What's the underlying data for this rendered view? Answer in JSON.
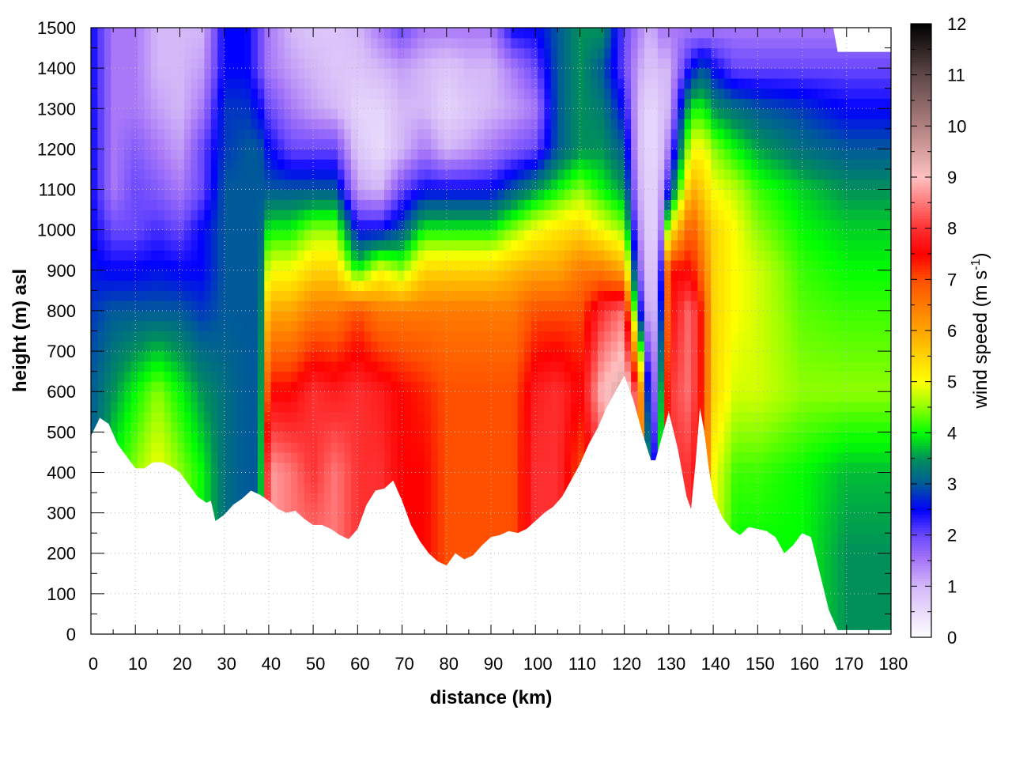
{
  "chart_data": {
    "type": "heatmap",
    "title": "",
    "xlabel": "distance (km)",
    "ylabel": "height (m) asl",
    "colorbar_label": {
      "text": "wind speed (m s",
      "superscript": "-1",
      "suffix": ")"
    },
    "xlim": [
      0,
      180
    ],
    "ylim": [
      0,
      1500
    ],
    "clim": [
      0,
      12
    ],
    "x_ticks": [
      "0",
      "10",
      "20",
      "30",
      "40",
      "50",
      "60",
      "70",
      "80",
      "90",
      "100",
      "110",
      "120",
      "130",
      "140",
      "150",
      "160",
      "170",
      "180"
    ],
    "y_ticks": [
      "0",
      "100",
      "200",
      "300",
      "400",
      "500",
      "600",
      "700",
      "800",
      "900",
      "1000",
      "1100",
      "1200",
      "1300",
      "1400",
      "1500"
    ],
    "colorbar_ticks": [
      "0",
      "1",
      "2",
      "3",
      "4",
      "5",
      "6",
      "7",
      "8",
      "9",
      "10",
      "11",
      "12"
    ],
    "grid": true,
    "colormap": [
      {
        "v": 0,
        "color": "#ffffff"
      },
      {
        "v": 1,
        "color": "#d4b8f8"
      },
      {
        "v": 1.5,
        "color": "#a878f8"
      },
      {
        "v": 2,
        "color": "#6a48ff"
      },
      {
        "v": 2.5,
        "color": "#0000ff"
      },
      {
        "v": 3,
        "color": "#005a9a"
      },
      {
        "v": 3.5,
        "color": "#00905a"
      },
      {
        "v": 4,
        "color": "#00ff00"
      },
      {
        "v": 4.5,
        "color": "#90ff00"
      },
      {
        "v": 5,
        "color": "#ffff00"
      },
      {
        "v": 5.5,
        "color": "#ffd400"
      },
      {
        "v": 6,
        "color": "#ffa500"
      },
      {
        "v": 7,
        "color": "#ff5000"
      },
      {
        "v": 7.5,
        "color": "#ff0000"
      },
      {
        "v": 8,
        "color": "#ff3030"
      },
      {
        "v": 9,
        "color": "#ffc0c0"
      },
      {
        "v": 10,
        "color": "#b08080"
      },
      {
        "v": 11,
        "color": "#604848"
      },
      {
        "v": 12,
        "color": "#000000"
      }
    ],
    "terrain": {
      "distance_km": [
        0,
        2,
        4,
        6,
        8,
        10,
        12,
        14,
        16,
        18,
        20,
        22,
        24,
        26,
        27,
        28,
        30,
        32,
        34,
        36,
        38,
        40,
        42,
        44,
        46,
        48,
        50,
        52,
        54,
        56,
        58,
        60,
        62,
        64,
        66,
        68,
        70,
        72,
        74,
        76,
        78,
        80,
        82,
        84,
        86,
        88,
        90,
        92,
        94,
        96,
        98,
        100,
        102,
        104,
        106,
        108,
        110,
        112,
        114,
        116,
        118,
        120,
        122,
        124,
        126,
        127,
        128,
        130,
        132,
        134,
        135,
        136,
        137,
        138,
        139,
        140,
        142,
        144,
        146,
        148,
        150,
        152,
        154,
        156,
        158,
        160,
        162,
        164,
        166,
        168,
        170,
        180
      ],
      "height_m": [
        490,
        535,
        520,
        470,
        440,
        410,
        410,
        425,
        425,
        415,
        400,
        370,
        340,
        325,
        330,
        280,
        295,
        320,
        335,
        355,
        345,
        330,
        310,
        300,
        305,
        285,
        270,
        270,
        260,
        245,
        235,
        260,
        320,
        355,
        360,
        380,
        330,
        270,
        230,
        200,
        180,
        170,
        200,
        185,
        195,
        220,
        240,
        245,
        255,
        250,
        260,
        280,
        300,
        315,
        340,
        380,
        420,
        470,
        510,
        560,
        600,
        640,
        580,
        500,
        430,
        430,
        470,
        550,
        460,
        340,
        310,
        420,
        560,
        500,
        410,
        340,
        290,
        260,
        245,
        265,
        260,
        255,
        240,
        200,
        220,
        250,
        240,
        150,
        60,
        10,
        10,
        10
      ]
    },
    "data_top": {
      "distance_km": [
        0,
        167,
        168,
        180
      ],
      "height_m": [
        1500,
        1500,
        1440,
        1440
      ]
    },
    "grid_x_km": [
      0,
      5,
      10,
      15,
      20,
      25,
      30,
      35,
      38,
      40,
      45,
      50,
      55,
      60,
      65,
      70,
      75,
      80,
      85,
      90,
      95,
      100,
      105,
      110,
      115,
      120,
      123,
      126,
      128,
      130,
      135,
      138,
      140,
      145,
      150,
      160,
      170,
      180
    ],
    "grid_y_m": [
      200,
      400,
      600,
      800,
      900,
      1000,
      1100,
      1200,
      1300,
      1400,
      1500
    ],
    "wind_speed": [
      [
        3,
        3,
        3,
        2.8,
        2.6,
        2.5,
        2.5,
        2.5,
        2.5,
        2.5,
        2.5
      ],
      [
        4,
        4,
        3.5,
        3,
        2.5,
        2,
        1.5,
        1.5,
        1.5,
        1.5,
        1.5
      ],
      [
        4.5,
        4.5,
        4,
        3,
        2.5,
        2,
        2,
        1.8,
        1.5,
        1.5,
        1.5
      ],
      [
        5,
        5,
        4.5,
        3,
        2.6,
        2.2,
        1.8,
        1.5,
        1.2,
        1,
        1
      ],
      [
        4.5,
        4.5,
        4,
        3,
        2.5,
        2,
        1.5,
        1.2,
        1,
        1,
        1
      ],
      [
        4,
        4,
        3.5,
        2.8,
        2.5,
        2.5,
        2,
        2,
        1.5,
        1.2,
        1
      ],
      [
        3.2,
        3.2,
        3.2,
        3,
        3,
        3,
        3,
        2.8,
        2.8,
        2.5,
        2.5
      ],
      [
        3,
        3,
        3,
        3,
        3,
        3,
        3,
        3,
        2.8,
        2.5,
        2.5
      ],
      [
        3,
        3,
        3,
        3,
        3,
        3,
        3,
        3,
        2.5,
        2,
        2
      ],
      [
        8.8,
        8.8,
        7.5,
        6,
        5,
        4,
        3,
        2.5,
        2,
        1.5,
        1.5
      ],
      [
        8.5,
        8.5,
        7.5,
        6,
        5,
        4,
        3,
        2,
        1.5,
        1.2,
        1
      ],
      [
        8.5,
        8,
        8,
        6.5,
        5.5,
        4.5,
        3,
        2,
        1.2,
        1,
        0.8
      ],
      [
        8.5,
        8.5,
        7.8,
        6.5,
        5.5,
        4.5,
        3,
        2,
        1,
        0.8,
        0.8
      ],
      [
        8,
        8,
        8,
        7,
        4,
        2.5,
        1.2,
        0.8,
        0.6,
        0.8,
        1
      ],
      [
        8,
        8,
        7.8,
        6.5,
        5,
        2.5,
        1,
        0.5,
        0.6,
        1,
        1.5
      ],
      [
        7.5,
        7.5,
        7.5,
        6.5,
        4.5,
        3,
        2,
        1,
        1,
        1.2,
        2
      ],
      [
        7.5,
        7.5,
        7.3,
        6.5,
        5.5,
        4,
        2.5,
        1.5,
        1,
        1,
        1.5
      ],
      [
        7,
        7,
        7,
        6.5,
        5.5,
        4,
        2.5,
        1,
        0.6,
        0.8,
        1.5
      ],
      [
        7,
        7,
        7,
        6.5,
        5.5,
        4,
        2.5,
        1.2,
        0.8,
        1,
        1.5
      ],
      [
        7,
        7,
        7,
        6.5,
        5.5,
        4,
        2.5,
        1.5,
        1,
        1,
        1.5
      ],
      [
        7,
        7,
        7,
        6.5,
        5.8,
        4.5,
        3,
        1.8,
        1.2,
        1.5,
        2.5
      ],
      [
        8,
        8,
        7.8,
        7,
        6,
        5,
        3.5,
        2,
        1.5,
        2,
        2.5
      ],
      [
        8,
        8,
        8,
        7,
        6,
        5.3,
        4,
        3,
        3,
        3,
        3
      ],
      [
        7,
        7,
        7.5,
        7,
        6.5,
        5.5,
        4.5,
        3.5,
        3.5,
        3.5,
        3.5
      ],
      [
        8,
        8,
        9,
        8,
        6.5,
        5,
        4,
        3.5,
        3.3,
        3,
        3.5
      ],
      [
        9,
        9,
        9.5,
        8.5,
        6,
        4.5,
        3.5,
        3,
        2.5,
        2,
        2
      ],
      [
        8,
        8,
        8,
        3,
        2,
        1.5,
        1.2,
        1,
        1,
        1.2,
        1.5
      ],
      [
        2,
        2,
        1,
        0.5,
        0.5,
        0.5,
        0.5,
        0.5,
        0.5,
        0.8,
        1
      ],
      [
        3.5,
        3.5,
        3,
        2,
        1.5,
        1,
        1,
        0.8,
        0.8,
        1,
        1.5
      ],
      [
        8,
        8,
        8,
        7.5,
        7.5,
        5,
        2.5,
        1.5,
        1,
        1,
        1.5
      ],
      [
        8,
        8,
        8.5,
        8.5,
        7.5,
        7,
        6,
        5,
        4,
        2.5,
        1.5
      ],
      [
        7,
        7,
        7,
        7,
        6.5,
        6,
        5.5,
        5,
        4,
        3,
        1.5
      ],
      [
        5,
        5,
        5.5,
        5.5,
        5.5,
        5.5,
        5,
        4.5,
        3.5,
        2.5,
        1.5
      ],
      [
        4,
        4.2,
        4.8,
        5,
        5,
        5,
        4.7,
        4,
        3.2,
        2,
        1.5
      ],
      [
        4,
        4.2,
        4.8,
        4.8,
        4.8,
        4.5,
        4.2,
        3.6,
        3,
        2,
        1.5
      ],
      [
        4,
        4,
        4.5,
        4.3,
        4.2,
        4,
        3.8,
        3.2,
        2.8,
        2,
        1.5
      ],
      [
        3.5,
        3.7,
        4.5,
        4.2,
        4,
        3.8,
        3.5,
        3,
        2.5,
        2,
        1.5
      ],
      [
        3.5,
        3.7,
        4.5,
        4.2,
        4,
        3.8,
        3.5,
        3,
        2.5,
        2,
        1.5
      ]
    ]
  }
}
